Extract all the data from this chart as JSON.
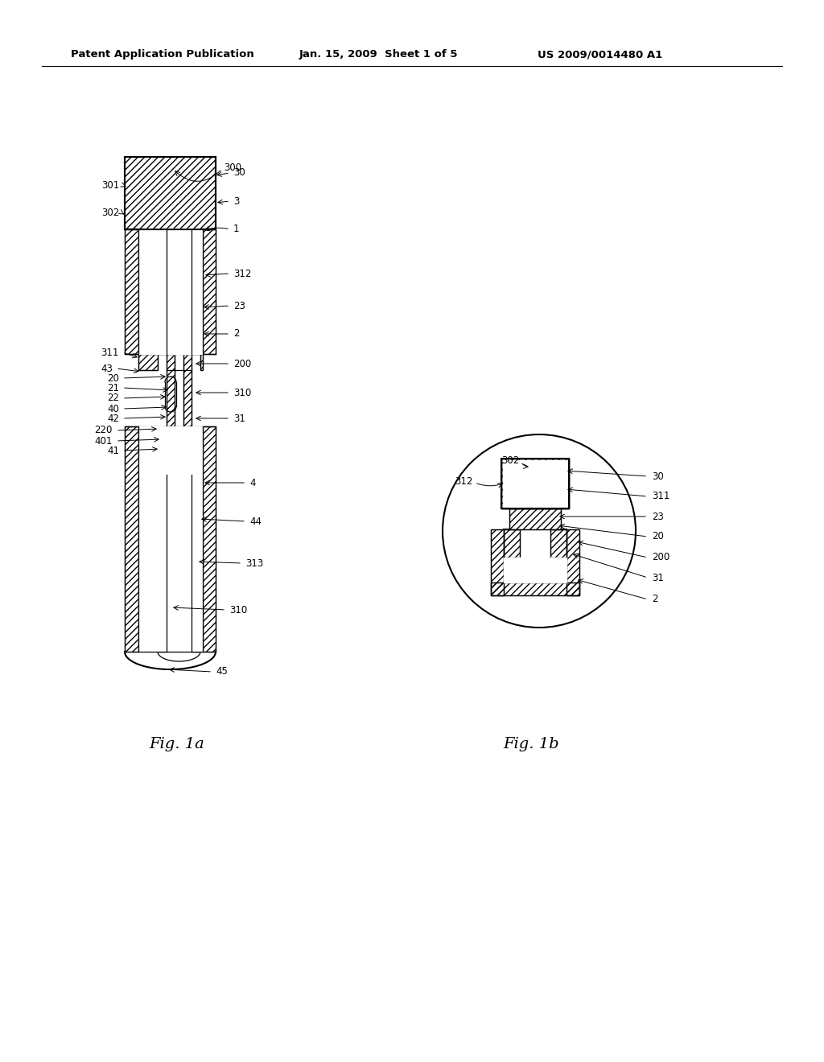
{
  "bg_color": "#ffffff",
  "lc": "#000000",
  "header_left": "Patent Application Publication",
  "header_mid": "Jan. 15, 2009  Sheet 1 of 5",
  "header_right": "US 2009/0014480 A1",
  "fig1a_label": "Fig. 1a",
  "fig1b_label": "Fig. 1b"
}
